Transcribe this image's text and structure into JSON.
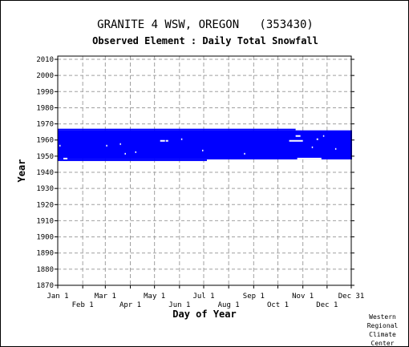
{
  "chart_data": {
    "type": "heatmap",
    "title": "GRANITE 4 WSW, OREGON   (353430)",
    "subtitle": "Observed Element : Daily Total Snowfall",
    "xlabel": "Day of Year",
    "ylabel": "Year",
    "ylim": [
      1870,
      2012
    ],
    "xlim": [
      1,
      365
    ],
    "grid": true,
    "yticks": [
      1870,
      1880,
      1890,
      1900,
      1910,
      1920,
      1930,
      1940,
      1950,
      1960,
      1970,
      1980,
      1990,
      2000,
      2010
    ],
    "x_upper_ticks": [
      {
        "label": "Jan 1",
        "day": 1
      },
      {
        "label": "Mar 1",
        "day": 60
      },
      {
        "label": "May 1",
        "day": 121
      },
      {
        "label": "Jul 1",
        "day": 182
      },
      {
        "label": "Sep 1",
        "day": 244
      },
      {
        "label": "Nov 1",
        "day": 305
      },
      {
        "label": "Dec 31",
        "day": 365
      }
    ],
    "x_lower_ticks": [
      {
        "label": "Feb 1",
        "day": 32
      },
      {
        "label": "Apr 1",
        "day": 91
      },
      {
        "label": "Jun 1",
        "day": 152
      },
      {
        "label": "Aug 1",
        "day": 213
      },
      {
        "label": "Oct 1",
        "day": 274
      },
      {
        "label": "Dec 1",
        "day": 335
      }
    ],
    "series": [
      {
        "color": "#0000ff",
        "segments": [
          {
            "start_day": 1,
            "end_day": 365,
            "start_year": 1948,
            "end_year": 1965
          },
          {
            "start_day": 1,
            "end_day": 295,
            "start_year": 1966,
            "end_year": 1966
          },
          {
            "start_day": 1,
            "end_day": 185,
            "start_year": 1947,
            "end_year": 1947
          }
        ]
      }
    ],
    "missing_marks": [
      {
        "day": 3,
        "year": 1956,
        "days": 1
      },
      {
        "day": 8,
        "year": 1948,
        "days": 5
      },
      {
        "day": 61,
        "year": 1956,
        "days": 1
      },
      {
        "day": 78,
        "year": 1957,
        "days": 1
      },
      {
        "day": 84,
        "year": 1951,
        "days": 1
      },
      {
        "day": 97,
        "year": 1952,
        "days": 1
      },
      {
        "day": 128,
        "year": 1959,
        "days": 6
      },
      {
        "day": 135,
        "year": 1959,
        "days": 3
      },
      {
        "day": 154,
        "year": 1960,
        "days": 1
      },
      {
        "day": 180,
        "year": 1953,
        "days": 1
      },
      {
        "day": 232,
        "year": 1951,
        "days": 1
      },
      {
        "day": 288,
        "year": 1959,
        "days": 17
      },
      {
        "day": 296,
        "year": 1962,
        "days": 6
      },
      {
        "day": 316,
        "year": 1955,
        "days": 1
      },
      {
        "day": 322,
        "year": 1960,
        "days": 2
      },
      {
        "day": 330,
        "year": 1962,
        "days": 1
      },
      {
        "day": 298,
        "year": 1948,
        "days": 30
      },
      {
        "day": 345,
        "year": 1954,
        "days": 1
      }
    ]
  },
  "credit": [
    "Western",
    "Regional",
    "Climate",
    "Center"
  ]
}
